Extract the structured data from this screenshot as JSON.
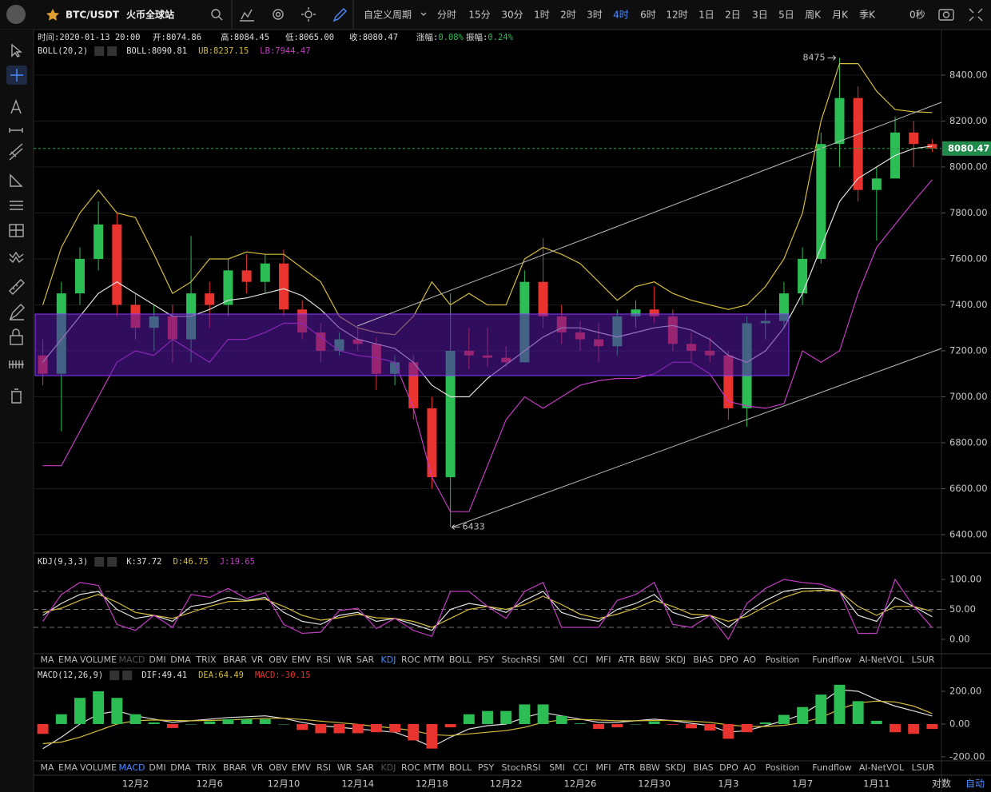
{
  "toolbar": {
    "symbol": "BTC/USDT",
    "exchange": "火币全球站",
    "custom_period": "自定义周期",
    "periods": [
      "分时",
      "15分",
      "30分",
      "1时",
      "2时",
      "3时",
      "4时",
      "6时",
      "12时",
      "1日",
      "2日",
      "3日",
      "5日",
      "周K",
      "月K",
      "季K"
    ],
    "active_period": 6,
    "countdown": "0秒"
  },
  "info": [
    {
      "label": "时间:",
      "value": "2020-01-13 20:00"
    },
    {
      "label": "开:",
      "value": "8074.86"
    },
    {
      "label": "高:",
      "value": "8084.45"
    },
    {
      "label": "低:",
      "value": "8065.00"
    },
    {
      "label": "收:",
      "value": "8080.47"
    },
    {
      "label": "涨幅:",
      "value": "0.08%",
      "color": "#2dbd55"
    },
    {
      "label": "振幅:",
      "value": "0.24%",
      "color": "#2dbd55"
    }
  ],
  "indicator_tabs": [
    "MA",
    "EMA",
    "VOLUME",
    "MACD",
    "DMI",
    "DMA",
    "TRIX",
    "BRAR",
    "VR",
    "OBV",
    "EMV",
    "RSI",
    "WR",
    "SAR",
    "KDJ",
    "ROC",
    "MTM",
    "BOLL",
    "PSY",
    "StochRSI",
    "SMI",
    "CCI",
    "MFI",
    "ATR",
    "BBW",
    "SKDJ",
    "BIAS",
    "DPO",
    "AO",
    "Position",
    "Fundflow",
    "AI-NetVOL",
    "LSUR"
  ],
  "axis_options": {
    "log": "对数",
    "auto": "自动"
  },
  "chart_data": [
    {
      "type": "candlestick",
      "indicator": "BOLL(20,2)",
      "categories": [
        null,
        null,
        null,
        null,
        null,
        "12月2",
        null,
        null,
        null,
        "12月6",
        null,
        null,
        null,
        "12月10",
        null,
        null,
        null,
        "12月14",
        null,
        null,
        null,
        "12月18",
        null,
        null,
        null,
        "12月22",
        null,
        null,
        null,
        "12月26",
        null,
        null,
        null,
        "12月30",
        null,
        null,
        null,
        "1月3",
        null,
        null,
        null,
        "1月7",
        null,
        null,
        null,
        "1月11",
        null,
        null,
        null
      ],
      "open": [
        7180,
        7100,
        7450,
        7600,
        7750,
        7400,
        7300,
        7350,
        7250,
        7450,
        7400,
        7550,
        7500,
        7580,
        7380,
        7280,
        7200,
        7250,
        7230,
        7100,
        7150,
        6950,
        6650,
        7200,
        7180,
        7170,
        7150,
        7500,
        7350,
        7280,
        7250,
        7220,
        7350,
        7380,
        7350,
        7230,
        7200,
        7180,
        6950,
        7320,
        7330,
        7450,
        7600,
        8100,
        8300,
        7900,
        7950,
        8150,
        8100
      ],
      "high": [
        7250,
        7500,
        7650,
        7850,
        7800,
        7450,
        7400,
        7400,
        7700,
        7500,
        7600,
        7620,
        7620,
        7640,
        7420,
        7320,
        7280,
        7300,
        7260,
        7180,
        7180,
        7000,
        7450,
        7300,
        7300,
        7220,
        7550,
        7690,
        7400,
        7330,
        7320,
        7380,
        7420,
        7480,
        7380,
        7280,
        7260,
        7200,
        7350,
        7380,
        7500,
        7650,
        8150,
        8475,
        8350,
        8000,
        8220,
        8200,
        8120
      ],
      "low": [
        7050,
        6850,
        7400,
        7550,
        7350,
        7250,
        7200,
        7150,
        7150,
        7300,
        7350,
        7450,
        7450,
        7350,
        7250,
        7150,
        7180,
        7200,
        7030,
        7050,
        6900,
        6600,
        6433,
        7120,
        7130,
        7130,
        7150,
        7300,
        7230,
        7200,
        7150,
        7180,
        7300,
        7320,
        7200,
        7150,
        7150,
        6900,
        6870,
        7250,
        7300,
        7400,
        7580,
        8000,
        7850,
        7680,
        7950,
        8000,
        8065
      ],
      "close": [
        7100,
        7450,
        7600,
        7750,
        7400,
        7300,
        7350,
        7250,
        7450,
        7400,
        7550,
        7500,
        7580,
        7380,
        7280,
        7200,
        7250,
        7230,
        7100,
        7150,
        6950,
        6650,
        7200,
        7180,
        7170,
        7150,
        7500,
        7350,
        7280,
        7250,
        7220,
        7350,
        7380,
        7350,
        7230,
        7200,
        7180,
        6950,
        7320,
        7330,
        7450,
        7600,
        8100,
        8300,
        7900,
        7950,
        8150,
        8100,
        8080.47
      ],
      "up_color": "#2dbd55",
      "down_color": "#e8332e",
      "series": [
        {
          "name": "BOLL",
          "label": "BOLL:8090.81",
          "color": "#e0e0e0",
          "values": [
            7150,
            7250,
            7350,
            7450,
            7500,
            7450,
            7400,
            7350,
            7350,
            7380,
            7420,
            7430,
            7450,
            7470,
            7440,
            7380,
            7300,
            7250,
            7230,
            7210,
            7150,
            7050,
            7000,
            7000,
            7080,
            7140,
            7200,
            7260,
            7300,
            7300,
            7280,
            7260,
            7280,
            7300,
            7310,
            7290,
            7250,
            7180,
            7150,
            7200,
            7300,
            7450,
            7650,
            7850,
            7950,
            8000,
            8050,
            8080,
            8090.81
          ]
        },
        {
          "name": "UB",
          "label": "UB:8237.15",
          "color": "#d4bd3c",
          "values": [
            7400,
            7650,
            7800,
            7900,
            7800,
            7780,
            7620,
            7450,
            7500,
            7600,
            7600,
            7630,
            7620,
            7620,
            7560,
            7500,
            7350,
            7300,
            7280,
            7270,
            7350,
            7500,
            7400,
            7450,
            7400,
            7400,
            7600,
            7650,
            7620,
            7580,
            7500,
            7420,
            7480,
            7500,
            7450,
            7420,
            7400,
            7380,
            7400,
            7480,
            7600,
            7800,
            8200,
            8450,
            8450,
            8330,
            8250,
            8240,
            8237.15
          ]
        },
        {
          "name": "LB",
          "label": "LB:7944.47",
          "color": "#c43cc4",
          "values": [
            6700,
            6700,
            6850,
            7000,
            7150,
            7200,
            7180,
            7250,
            7200,
            7150,
            7250,
            7250,
            7280,
            7320,
            7320,
            7260,
            7200,
            7180,
            7170,
            7150,
            6950,
            6650,
            6500,
            6500,
            6700,
            6900,
            7000,
            6950,
            7000,
            7050,
            7070,
            7080,
            7080,
            7100,
            7150,
            7150,
            7100,
            6980,
            6960,
            6950,
            6970,
            7200,
            7150,
            7200,
            7450,
            7650,
            7750,
            7850,
            7944.47
          ]
        }
      ],
      "ylim": [
        6320,
        8598
      ],
      "yticks": [
        {
          "value": 6400,
          "label": "6400.00"
        },
        {
          "value": 6600,
          "label": "6600.00"
        },
        {
          "value": 6800,
          "label": "6800.00"
        },
        {
          "value": 7000,
          "label": "7000.00"
        },
        {
          "value": 7200,
          "label": "7200.00"
        },
        {
          "value": 7400,
          "label": "7400.00"
        },
        {
          "value": 7600,
          "label": "7600.00"
        },
        {
          "value": 7800,
          "label": "7800.00"
        },
        {
          "value": 8000,
          "label": "8000.00"
        },
        {
          "value": 8200,
          "label": "8200.00"
        },
        {
          "value": 8400,
          "label": "8400.00"
        }
      ],
      "grid": true,
      "last_price": {
        "value": 8080.47,
        "label": "8080.47"
      },
      "extremes": [
        8475,
        6433
      ]
    },
    {
      "type": "line",
      "indicator": "KDJ(9,3,3)",
      "series": [
        {
          "name": "K",
          "label": "K:37.72",
          "color": "#e0e0e0",
          "values": [
            40,
            60,
            75,
            80,
            50,
            35,
            40,
            30,
            55,
            60,
            70,
            65,
            70,
            45,
            30,
            25,
            40,
            45,
            30,
            35,
            25,
            15,
            50,
            60,
            55,
            45,
            65,
            80,
            45,
            35,
            30,
            50,
            60,
            75,
            45,
            35,
            40,
            20,
            45,
            65,
            80,
            85,
            85,
            80,
            40,
            30,
            70,
            55,
            37.72
          ]
        },
        {
          "name": "D",
          "label": "D:46.75",
          "color": "#d4bd3c",
          "values": [
            45,
            52,
            65,
            75,
            62,
            45,
            40,
            35,
            45,
            55,
            63,
            64,
            67,
            55,
            40,
            32,
            36,
            42,
            36,
            35,
            30,
            20,
            35,
            50,
            55,
            50,
            58,
            72,
            58,
            42,
            35,
            42,
            52,
            65,
            55,
            42,
            40,
            30,
            38,
            55,
            70,
            80,
            82,
            80,
            55,
            40,
            55,
            55,
            46.75
          ]
        },
        {
          "name": "J",
          "label": "J:19.65",
          "color": "#c43cc4",
          "values": [
            30,
            75,
            95,
            90,
            25,
            15,
            40,
            20,
            75,
            70,
            85,
            68,
            78,
            25,
            10,
            12,
            48,
            52,
            18,
            35,
            15,
            5,
            80,
            80,
            55,
            35,
            80,
            95,
            20,
            20,
            20,
            65,
            75,
            95,
            25,
            20,
            40,
            0,
            60,
            85,
            100,
            95,
            92,
            80,
            10,
            10,
            100,
            55,
            19.65
          ]
        }
      ],
      "ylim": [
        -24,
        140
      ],
      "yticks": [
        {
          "value": 0,
          "label": "0.00"
        },
        {
          "value": 50,
          "label": "50.00"
        },
        {
          "value": 100,
          "label": "100.00"
        }
      ],
      "levels": [
        20,
        50,
        80
      ],
      "grid": false,
      "active_tab": 14,
      "muted_tab": 3
    },
    {
      "type": "bar",
      "indicator": "MACD(12,26,9)",
      "series": [
        {
          "name": "DIF",
          "label": "DIF:49.41",
          "color": "#e0e0e0",
          "values": [
            -150,
            -80,
            0,
            60,
            80,
            50,
            30,
            10,
            20,
            30,
            40,
            45,
            50,
            35,
            10,
            -10,
            -20,
            -30,
            -40,
            -50,
            -90,
            -140,
            -80,
            -30,
            -10,
            0,
            40,
            70,
            50,
            30,
            10,
            10,
            20,
            30,
            20,
            5,
            -10,
            -50,
            -40,
            -10,
            20,
            60,
            130,
            210,
            200,
            150,
            110,
            80,
            49.41
          ]
        },
        {
          "name": "DEA",
          "label": "DEA:64.49",
          "color": "#d4bd3c",
          "values": [
            -120,
            -110,
            -80,
            -40,
            0,
            20,
            25,
            22,
            20,
            22,
            25,
            30,
            35,
            35,
            28,
            18,
            8,
            -2,
            -15,
            -25,
            -40,
            -65,
            -70,
            -60,
            -50,
            -40,
            -20,
            10,
            25,
            28,
            25,
            20,
            20,
            22,
            22,
            18,
            10,
            -5,
            -15,
            -15,
            -8,
            8,
            40,
            90,
            130,
            140,
            135,
            110,
            64.49
          ]
        },
        {
          "name": "MACD",
          "label": "MACD:-30.15",
          "color": "#e8332e",
          "bar": true,
          "up_color": "#2dbd55",
          "down_color": "#e8332e",
          "values": [
            -60,
            60,
            160,
            200,
            160,
            60,
            10,
            -24,
            0,
            16,
            30,
            30,
            30,
            0,
            -36,
            -56,
            -56,
            -56,
            -50,
            -50,
            -100,
            -150,
            -20,
            60,
            80,
            80,
            120,
            120,
            50,
            4,
            -30,
            -20,
            0,
            16,
            -4,
            -26,
            -40,
            -90,
            -50,
            10,
            56,
            104,
            180,
            240,
            140,
            20,
            -50,
            -60,
            -30.15
          ]
        }
      ],
      "ylim": [
        -215,
        332
      ],
      "yticks": [
        {
          "value": -200,
          "label": "-200.00"
        },
        {
          "value": 0,
          "label": "0.00"
        },
        {
          "value": 200,
          "label": "200.00"
        }
      ],
      "grid": false,
      "active_tab": 3,
      "muted_tab": 14
    }
  ]
}
